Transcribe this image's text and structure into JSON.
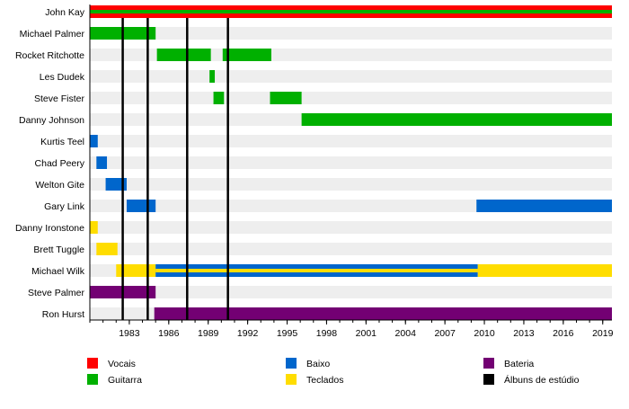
{
  "chart_data": {
    "type": "timeline",
    "title": "",
    "xlim": [
      1980,
      2019.7
    ],
    "x_ticks": [
      1983,
      1986,
      1989,
      1992,
      1995,
      1998,
      2001,
      2004,
      2007,
      2010,
      2013,
      2016,
      2019
    ],
    "colors": {
      "vocals": "#ff0000",
      "guitar": "#00b000",
      "bass": "#0066cc",
      "keys": "#ffdd00",
      "drums": "#730073",
      "albums": "#000000",
      "row_bg": "#eeeeee"
    },
    "members": [
      {
        "name": "John Kay",
        "spans": [
          {
            "role": "vocals",
            "from": 1980,
            "to": 2019.7,
            "stripe": "guitar"
          }
        ]
      },
      {
        "name": "Michael Palmer",
        "spans": [
          {
            "role": "guitar",
            "from": 1980,
            "to": 1985
          }
        ]
      },
      {
        "name": "Rocket Ritchotte",
        "spans": [
          {
            "role": "guitar",
            "from": 1985.1,
            "to": 1989.2
          },
          {
            "role": "guitar",
            "from": 1990.1,
            "to": 1993.8
          }
        ]
      },
      {
        "name": "Les Dudek",
        "spans": [
          {
            "role": "guitar",
            "from": 1989.1,
            "to": 1989.5
          }
        ]
      },
      {
        "name": "Steve Fister",
        "spans": [
          {
            "role": "guitar",
            "from": 1989.4,
            "to": 1990.2
          },
          {
            "role": "guitar",
            "from": 1993.7,
            "to": 1996.1
          }
        ]
      },
      {
        "name": "Danny Johnson",
        "spans": [
          {
            "role": "guitar",
            "from": 1996.1,
            "to": 2019.7
          }
        ]
      },
      {
        "name": "Kurtis Teel",
        "spans": [
          {
            "role": "bass",
            "from": 1980,
            "to": 1980.6
          }
        ]
      },
      {
        "name": "Chad Peery",
        "spans": [
          {
            "role": "bass",
            "from": 1980.5,
            "to": 1981.3
          }
        ]
      },
      {
        "name": "Welton Gite",
        "spans": [
          {
            "role": "bass",
            "from": 1981.2,
            "to": 1982.8
          }
        ]
      },
      {
        "name": "Gary Link",
        "spans": [
          {
            "role": "bass",
            "from": 1982.8,
            "to": 1985
          },
          {
            "role": "bass",
            "from": 2009.4,
            "to": 2019.7
          }
        ]
      },
      {
        "name": "Danny Ironstone",
        "spans": [
          {
            "role": "keys",
            "from": 1980,
            "to": 1980.6
          }
        ]
      },
      {
        "name": "Brett Tuggle",
        "spans": [
          {
            "role": "keys",
            "from": 1980.5,
            "to": 1982.1
          }
        ]
      },
      {
        "name": "Michael Wilk",
        "spans": [
          {
            "role": "keys",
            "from": 1982,
            "to": 1985
          },
          {
            "role": "bass",
            "from": 1985,
            "to": 2009.5,
            "stripe": "keys"
          },
          {
            "role": "keys",
            "from": 2009.5,
            "to": 2019.7
          }
        ]
      },
      {
        "name": "Steve Palmer",
        "spans": [
          {
            "role": "drums",
            "from": 1980,
            "to": 1985
          }
        ]
      },
      {
        "name": "Ron Hurst",
        "spans": [
          {
            "role": "drums",
            "from": 1984.9,
            "to": 2019.7
          }
        ]
      }
    ],
    "studio_albums": [
      1982.5,
      1984.4,
      1987.4,
      1990.5
    ],
    "legend": [
      {
        "key": "vocals",
        "label": "Vocais"
      },
      {
        "key": "guitar",
        "label": "Guitarra"
      },
      {
        "key": "bass",
        "label": "Baixo"
      },
      {
        "key": "keys",
        "label": "Teclados"
      },
      {
        "key": "drums",
        "label": "Bateria"
      },
      {
        "key": "albums",
        "label": "Álbuns de estúdio"
      }
    ],
    "legend_placement": "bottom"
  }
}
